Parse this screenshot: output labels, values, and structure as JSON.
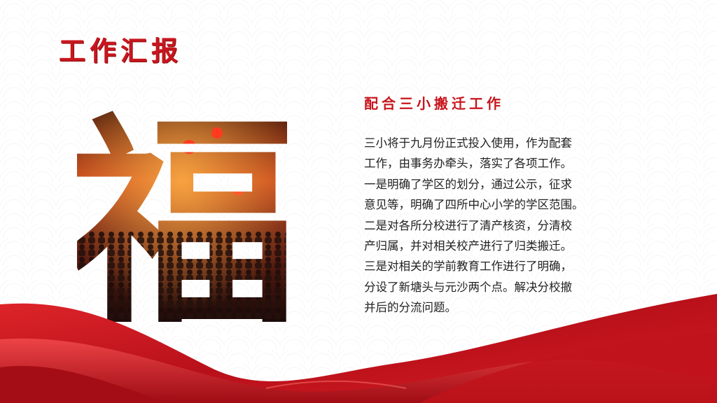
{
  "slide": {
    "title": "工作汇报",
    "image_glyph": "福",
    "section_title": "配合三小搬迁工作",
    "paragraph_lines": [
      "三小将于九月份正式投入使用，作为配套",
      "工作，由事务办牵头，落实了各项工作。",
      "一是明确了学区的划分，通过公示，征求",
      "意见等，明确了四所中心小学的学区范围。",
      "二是对各所分校进行了清产核资，分清校",
      "产归属，并对相关校产进行了归类搬迁。",
      "三是对相关的学前教育工作进行了明确，",
      "分设了新塘头与元沙两个点。解决分校撤",
      "并后的分流问题。"
    ]
  },
  "colors": {
    "accent": "#c8161d",
    "accent_dark": "#8e0f14",
    "text": "#222222"
  },
  "icons": {
    "decoration": "red-silk-ribbon"
  }
}
